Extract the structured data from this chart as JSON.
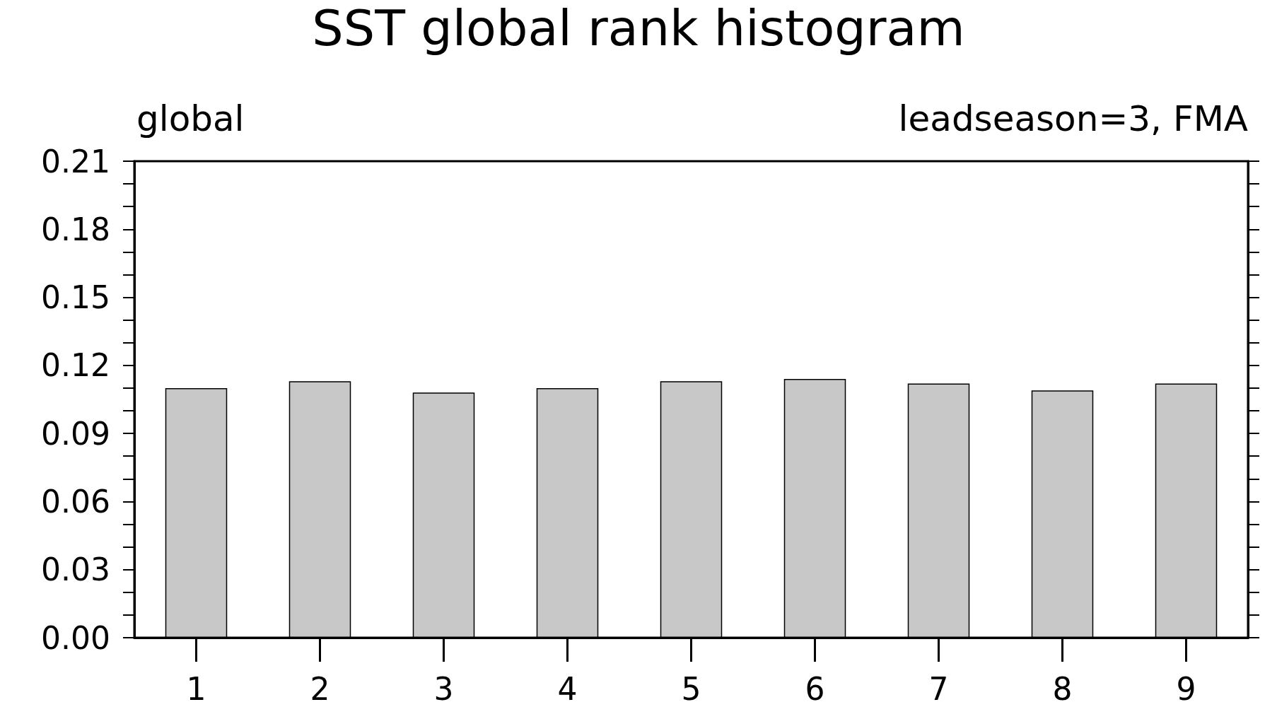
{
  "chart_data": {
    "type": "bar",
    "title": "SST global rank histogram",
    "subtitle": "global",
    "annotations": [
      "leadseason=3, FMA"
    ],
    "categories": [
      "1",
      "2",
      "3",
      "4",
      "5",
      "6",
      "7",
      "8",
      "9"
    ],
    "values": [
      0.11,
      0.113,
      0.108,
      0.11,
      0.113,
      0.114,
      0.112,
      0.109,
      0.112
    ],
    "color": "#c8c8c8",
    "ylim": [
      0,
      0.21
    ],
    "yticks": [
      {
        "value": 0,
        "label": "0.00"
      },
      {
        "value": 0.01,
        "label": null
      },
      {
        "value": 0.02,
        "label": null
      },
      {
        "value": 0.03,
        "label": "0.03"
      },
      {
        "value": 0.04,
        "label": null
      },
      {
        "value": 0.05,
        "label": null
      },
      {
        "value": 0.06,
        "label": "0.06"
      },
      {
        "value": 0.07,
        "label": null
      },
      {
        "value": 0.08,
        "label": null
      },
      {
        "value": 0.09,
        "label": "0.09"
      },
      {
        "value": 0.1,
        "label": null
      },
      {
        "value": 0.11,
        "label": null
      },
      {
        "value": 0.12,
        "label": "0.12"
      },
      {
        "value": 0.13,
        "label": null
      },
      {
        "value": 0.14,
        "label": null
      },
      {
        "value": 0.15,
        "label": "0.15"
      },
      {
        "value": 0.16,
        "label": null
      },
      {
        "value": 0.17,
        "label": null
      },
      {
        "value": 0.18,
        "label": "0.18"
      },
      {
        "value": 0.19,
        "label": null
      },
      {
        "value": 0.2,
        "label": null
      },
      {
        "value": 0.21,
        "label": "0.21"
      }
    ],
    "grid": false
  }
}
